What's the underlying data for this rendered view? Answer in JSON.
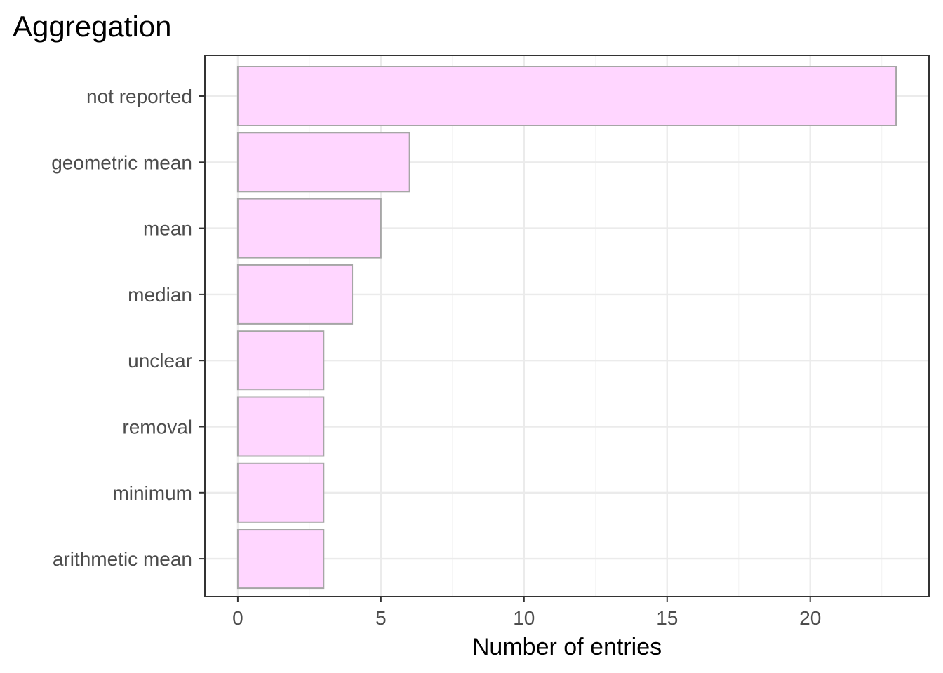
{
  "chart_data": {
    "type": "bar",
    "orientation": "horizontal",
    "title": "Aggregation",
    "xlabel": "Number of entries",
    "ylabel": "",
    "categories": [
      "not reported",
      "geometric mean",
      "mean",
      "median",
      "unclear",
      "removal",
      "minimum",
      "arithmetic mean"
    ],
    "values": [
      23,
      6,
      5,
      4,
      3,
      3,
      3,
      3
    ],
    "xlim": [
      -1.15,
      24.15
    ],
    "xticks": [
      "0",
      "5",
      "10",
      "15",
      "20"
    ],
    "xtick_values": [
      0,
      5,
      10,
      15,
      20
    ],
    "grid": true,
    "legend": "none",
    "colors": {
      "bar_fill": "#ffd6ff",
      "bar_stroke": "#a6a6a6",
      "grid_major": "#ebebeb",
      "grid_minor": "#f4f4f4",
      "panel_border": "#333333",
      "tick_text": "#4d4d4d"
    }
  }
}
